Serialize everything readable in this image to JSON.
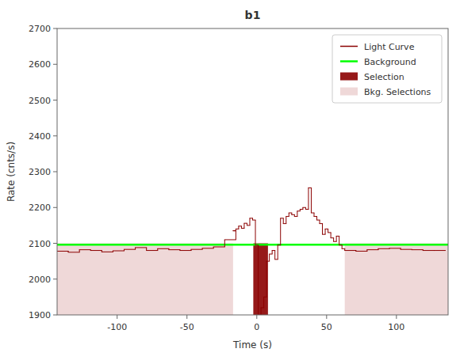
{
  "chart_data": {
    "type": "step",
    "title": "b1",
    "xlabel": "Time (s)",
    "ylabel": "Rate (cnts/s)",
    "xlim": [
      -143,
      137
    ],
    "ylim": [
      1900,
      2700
    ],
    "xticks": [
      -100,
      -50,
      0,
      50,
      100
    ],
    "yticks": [
      1900,
      2000,
      2100,
      2200,
      2300,
      2400,
      2500,
      2600,
      2700
    ],
    "grid": false,
    "legend": "upper right",
    "series": [
      {
        "name": "Light Curve",
        "type": "step",
        "color": "#8b0000",
        "x": [
          -143,
          -135,
          -127,
          -119,
          -111,
          -103,
          -95,
          -87,
          -79,
          -71,
          -63,
          -55,
          -47,
          -39,
          -31,
          -23,
          -17,
          -15,
          -13,
          -11,
          -9,
          -7,
          -5,
          -3,
          -1,
          1,
          3,
          5,
          7,
          9,
          11,
          13,
          15,
          17,
          19,
          21,
          23,
          25,
          27,
          29,
          31,
          33,
          35,
          37,
          39,
          41,
          43,
          45,
          47,
          49,
          51,
          53,
          55,
          57,
          59,
          61,
          63,
          71,
          79,
          87,
          95,
          103,
          111,
          119,
          127
        ],
        "values": [
          2078,
          2075,
          2082,
          2080,
          2076,
          2079,
          2083,
          2088,
          2080,
          2085,
          2082,
          2080,
          2083,
          2086,
          2090,
          2110,
          2135,
          2140,
          2148,
          2142,
          2156,
          2150,
          2170,
          2165,
          2095,
          1900,
          1920,
          1950,
          2050,
          2070,
          2080,
          2055,
          2095,
          2170,
          2155,
          2175,
          2185,
          2180,
          2175,
          2190,
          2195,
          2200,
          2195,
          2255,
          2185,
          2175,
          2165,
          2155,
          2125,
          2140,
          2130,
          2115,
          2105,
          2120,
          2095,
          2085,
          2080,
          2078,
          2082,
          2085,
          2086,
          2083,
          2082,
          2080,
          2080
        ],
        "bin_widths": [
          8,
          8,
          8,
          8,
          8,
          8,
          8,
          8,
          8,
          8,
          8,
          8,
          8,
          8,
          8,
          8,
          2,
          2,
          2,
          2,
          2,
          2,
          2,
          2,
          2,
          2,
          2,
          2,
          2,
          2,
          2,
          2,
          2,
          2,
          2,
          2,
          2,
          2,
          2,
          2,
          2,
          2,
          2,
          2,
          2,
          2,
          2,
          2,
          2,
          2,
          2,
          2,
          2,
          2,
          2,
          2,
          8,
          8,
          8,
          8,
          8,
          8,
          8,
          8,
          8
        ]
      },
      {
        "name": "Background",
        "type": "hline",
        "color": "#00ff00",
        "values": [
          2096
        ]
      },
      {
        "name": "Selection",
        "type": "region",
        "color": "#8b0000",
        "ranges": [
          [
            -2.5,
            8
          ]
        ],
        "bottom": 1900,
        "top": 2100
      },
      {
        "name": "Bkg. Selections",
        "type": "region",
        "color": "#e8c8c8",
        "ranges": [
          [
            -143,
            -17
          ],
          [
            63,
            137
          ]
        ],
        "bottom": 1900,
        "top": 2100
      }
    ]
  }
}
